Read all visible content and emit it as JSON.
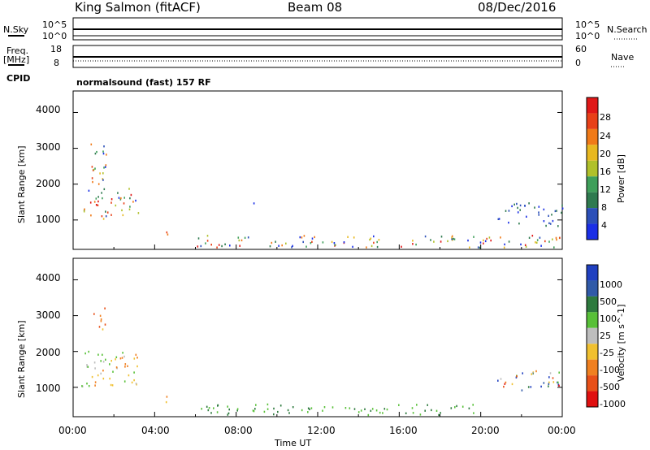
{
  "header": {
    "station": "King Salmon (fitACF)",
    "beam": "Beam 08",
    "date": "08/Dec/2016"
  },
  "top_panels": {
    "nsky_label": "N.Sky",
    "nsky_ticks": [
      "10^5",
      "10^0"
    ],
    "nsearch_label": "N.Search",
    "nsearch_ticks": [
      "10^5",
      "10^0"
    ],
    "freq_label": "Freq.",
    "freq_unit": "[MHz]",
    "freq_ticks": [
      "18",
      "8"
    ],
    "nave_label": "Nave",
    "nave_ticks": [
      "60",
      "0"
    ],
    "cpid_label": "CPID",
    "cpid_text": "normalsound (fast) 157 RF"
  },
  "chart_data": [
    {
      "type": "heatmap",
      "name": "power",
      "ylabel": "Slant Range [km]",
      "ytick_labels": [
        "1000",
        "2000",
        "3000",
        "4000"
      ],
      "ylim": [
        180,
        4600
      ],
      "xlim_hours": [
        0,
        24
      ],
      "colorbar": {
        "label": "Power [dB]",
        "ticks": [
          "4",
          "8",
          "12",
          "16",
          "20",
          "24",
          "28"
        ],
        "colors": [
          "#1a2fe6",
          "#2b4fb8",
          "#2f7a4f",
          "#3f9f5a",
          "#b0c02a",
          "#e8b820",
          "#f07a18",
          "#e84018",
          "#e01818"
        ]
      },
      "scatter_regions": [
        {
          "t_start": 0.7,
          "t_end": 1.6,
          "r_low": 1900,
          "r_high": 3300,
          "level": "mixed-high"
        },
        {
          "t_start": 0.5,
          "t_end": 3.3,
          "r_low": 1050,
          "r_high": 1900,
          "level": "mixed-high"
        },
        {
          "t_start": 4.2,
          "t_end": 4.7,
          "r_low": 550,
          "r_high": 800,
          "level": "high"
        },
        {
          "t_start": 8.5,
          "t_end": 9.0,
          "r_low": 1450,
          "r_high": 1600,
          "level": "low"
        },
        {
          "t_start": 6.0,
          "t_end": 24.0,
          "r_low": 250,
          "r_high": 600,
          "level": "mixed"
        },
        {
          "t_start": 20.8,
          "t_end": 24.0,
          "r_low": 850,
          "r_high": 1500,
          "level": "low"
        }
      ]
    },
    {
      "type": "heatmap",
      "name": "velocity",
      "ylabel": "Slant Range [km]",
      "ytick_labels": [
        "1000",
        "2000",
        "3000",
        "4000"
      ],
      "ylim": [
        180,
        4600
      ],
      "xlim_hours": [
        0,
        24
      ],
      "xtick_labels": [
        "00:00",
        "04:00",
        "08:00",
        "12:00",
        "16:00",
        "20:00",
        "00:00"
      ],
      "xlabel": "Time UT",
      "colorbar": {
        "label": "Velocity [m s^-1]",
        "ticks": [
          "1000",
          "500",
          "100",
          "25",
          "-25",
          "-100",
          "-500",
          "-1000"
        ],
        "colors": [
          "#2040c0",
          "#305aa8",
          "#2e7a3e",
          "#58c038",
          "#bdbdbd",
          "#f0c030",
          "#f08020",
          "#e85018",
          "#e01010"
        ]
      },
      "scatter_regions": [
        {
          "t_start": 0.9,
          "t_end": 1.6,
          "r_low": 2600,
          "r_high": 3300,
          "level": "negative"
        },
        {
          "t_start": 0.4,
          "t_end": 3.3,
          "r_low": 1050,
          "r_high": 2100,
          "level": "mixed-negative"
        },
        {
          "t_start": 4.2,
          "t_end": 4.7,
          "r_low": 550,
          "r_high": 800,
          "level": "negative"
        },
        {
          "t_start": 6.0,
          "t_end": 20.0,
          "r_low": 250,
          "r_high": 550,
          "level": "positive-small"
        },
        {
          "t_start": 20.8,
          "t_end": 24.0,
          "r_low": 900,
          "r_high": 1500,
          "level": "mixed"
        }
      ]
    }
  ]
}
